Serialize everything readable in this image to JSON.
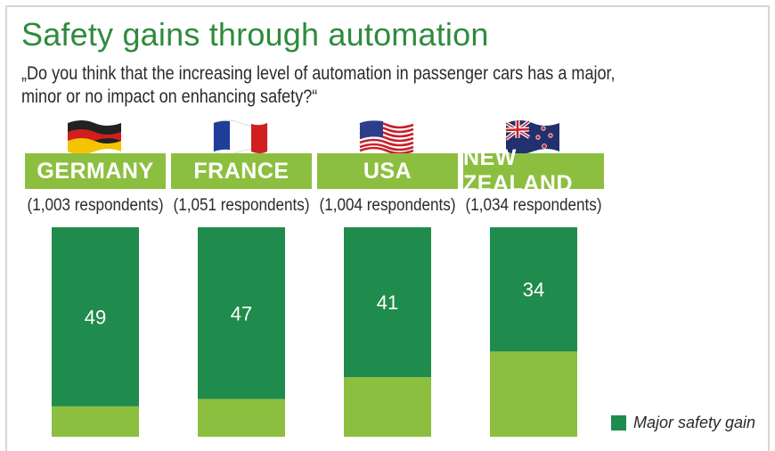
{
  "title": "Safety gains through automation",
  "question": "„Do you think that the increasing level of automation in passenger cars has a major, minor or no impact on enhancing safety?“",
  "columns": [
    {
      "country": "GERMANY",
      "respondents": "(1,003 respondents)",
      "flag": "germany-flag-icon"
    },
    {
      "country": "FRANCE",
      "respondents": "(1,051 respondents)",
      "flag": "france-flag-icon"
    },
    {
      "country": "USA",
      "respondents": "(1,004 respondents)",
      "flag": "usa-flag-icon"
    },
    {
      "country": "NEW ZEALAND",
      "respondents": "(1,034 respondents)",
      "flag": "new-zealand-flag-icon"
    }
  ],
  "legend": [
    {
      "label": "Major safety gain",
      "color": "#1f8b4c"
    }
  ],
  "colors": {
    "major": "#1f8b4c",
    "minor": "#8cbf3f",
    "title": "#2e8b3c",
    "header": "#8cbf3f"
  },
  "chart_data": {
    "type": "bar",
    "stacked": true,
    "unit": "%",
    "categories": [
      "GERMANY",
      "FRANCE",
      "USA",
      "NEW ZEALAND"
    ],
    "series": [
      {
        "name": "Major safety gain",
        "values": [
          49,
          47,
          41,
          34
        ]
      }
    ],
    "ylim": [
      0,
      100
    ]
  }
}
